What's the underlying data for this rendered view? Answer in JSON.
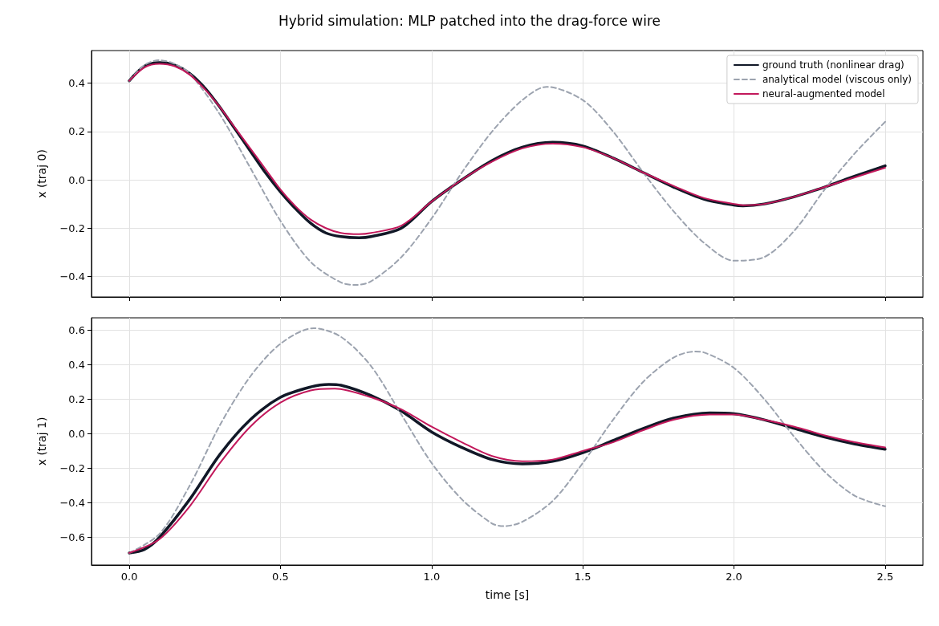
{
  "chart_data": [
    {
      "type": "line",
      "title": "Hybrid simulation: MLP patched into the drag-force wire",
      "ylabel": "x (traj 0)",
      "xlim": [
        -0.125,
        2.625
      ],
      "ylim": [
        -0.485,
        0.535
      ],
      "xticks": [
        {
          "value": 0,
          "label": null
        },
        {
          "value": 0.5,
          "label": null
        },
        {
          "value": 1,
          "label": null
        },
        {
          "value": 1.5,
          "label": null
        },
        {
          "value": 2,
          "label": null
        },
        {
          "value": 2.5,
          "label": null
        }
      ],
      "yticks": [
        {
          "value": -0.4,
          "label": "−0.4"
        },
        {
          "value": -0.2,
          "label": "−0.2"
        },
        {
          "value": 0,
          "label": "0.0"
        },
        {
          "value": 0.2,
          "label": "0.2"
        },
        {
          "value": 0.4,
          "label": "0.4"
        }
      ],
      "tick_labels": "y",
      "grid": true,
      "legend": "top right",
      "marker": "none",
      "series": [
        {
          "name": "ground truth (nonlinear drag)",
          "color": "#111827",
          "line_style": "solid",
          "x": [
            0,
            0.05,
            0.1,
            0.15,
            0.2,
            0.25,
            0.3,
            0.35,
            0.4,
            0.45,
            0.5,
            0.55,
            0.6,
            0.65,
            0.7,
            0.76,
            0.8,
            0.9,
            1.0,
            1.1,
            1.2,
            1.3,
            1.4,
            1.5,
            1.6,
            1.7,
            1.8,
            1.9,
            2.0,
            2.03,
            2.1,
            2.2,
            2.3,
            2.4,
            2.5
          ],
          "values": [
            0.41,
            0.47,
            0.485,
            0.475,
            0.44,
            0.38,
            0.3,
            0.21,
            0.12,
            0.03,
            -0.05,
            -0.12,
            -0.18,
            -0.22,
            -0.235,
            -0.24,
            -0.235,
            -0.2,
            -0.09,
            0.0,
            0.08,
            0.135,
            0.155,
            0.14,
            0.09,
            0.03,
            -0.03,
            -0.08,
            -0.105,
            -0.108,
            -0.1,
            -0.07,
            -0.03,
            0.015,
            0.058
          ]
        },
        {
          "name": "analytical model (viscous only)",
          "color": "#9ca3af",
          "line_style": "dashed",
          "x": [
            0,
            0.05,
            0.1,
            0.15,
            0.2,
            0.3,
            0.4,
            0.5,
            0.6,
            0.7,
            0.75,
            0.8,
            0.9,
            1.0,
            1.1,
            1.2,
            1.3,
            1.38,
            1.5,
            1.6,
            1.7,
            1.8,
            1.9,
            2.0,
            2.1,
            2.2,
            2.3,
            2.4,
            2.5
          ],
          "values": [
            0.41,
            0.475,
            0.495,
            0.48,
            0.44,
            0.27,
            0.05,
            -0.17,
            -0.34,
            -0.425,
            -0.435,
            -0.42,
            -0.32,
            -0.16,
            0.03,
            0.2,
            0.33,
            0.385,
            0.33,
            0.2,
            0.03,
            -0.13,
            -0.26,
            -0.335,
            -0.32,
            -0.21,
            -0.04,
            0.11,
            0.24
          ]
        },
        {
          "name": "neural-augmented model",
          "color": "#c2185b",
          "line_style": "solid",
          "x": [
            0,
            0.05,
            0.1,
            0.15,
            0.2,
            0.25,
            0.3,
            0.35,
            0.4,
            0.45,
            0.5,
            0.55,
            0.6,
            0.65,
            0.7,
            0.76,
            0.8,
            0.9,
            1.0,
            1.1,
            1.2,
            1.3,
            1.4,
            1.5,
            1.6,
            1.7,
            1.8,
            1.9,
            2.0,
            2.03,
            2.1,
            2.2,
            2.3,
            2.4,
            2.5
          ],
          "values": [
            0.41,
            0.465,
            0.48,
            0.47,
            0.435,
            0.375,
            0.3,
            0.215,
            0.13,
            0.045,
            -0.04,
            -0.11,
            -0.165,
            -0.2,
            -0.22,
            -0.225,
            -0.22,
            -0.19,
            -0.09,
            0.0,
            0.075,
            0.13,
            0.15,
            0.135,
            0.09,
            0.03,
            -0.025,
            -0.075,
            -0.1,
            -0.105,
            -0.1,
            -0.07,
            -0.03,
            0.01,
            0.05
          ]
        }
      ]
    },
    {
      "type": "line",
      "xlabel": "time [s]",
      "ylabel": "x (traj 1)",
      "xlim": [
        -0.125,
        2.625
      ],
      "ylim": [
        -0.76,
        0.67
      ],
      "xticks": [
        {
          "value": 0,
          "label": "0.0"
        },
        {
          "value": 0.5,
          "label": "0.5"
        },
        {
          "value": 1,
          "label": "1.0"
        },
        {
          "value": 1.5,
          "label": "1.5"
        },
        {
          "value": 2,
          "label": "2.0"
        },
        {
          "value": 2.5,
          "label": "2.5"
        }
      ],
      "yticks": [
        {
          "value": -0.6,
          "label": "−0.6"
        },
        {
          "value": -0.4,
          "label": "−0.4"
        },
        {
          "value": -0.2,
          "label": "−0.2"
        },
        {
          "value": 0,
          "label": "0.0"
        },
        {
          "value": 0.2,
          "label": "0.2"
        },
        {
          "value": 0.4,
          "label": "0.4"
        },
        {
          "value": 0.6,
          "label": "0.6"
        }
      ],
      "grid": true,
      "marker": "none",
      "series": [
        {
          "color": "#111827",
          "line_style": "solid",
          "x": [
            0,
            0.05,
            0.1,
            0.2,
            0.3,
            0.4,
            0.5,
            0.6,
            0.66,
            0.7,
            0.8,
            0.9,
            1.0,
            1.1,
            1.2,
            1.3,
            1.4,
            1.5,
            1.6,
            1.7,
            1.8,
            1.92,
            2.0,
            2.1,
            2.2,
            2.3,
            2.4,
            2.5
          ],
          "values": [
            -0.69,
            -0.67,
            -0.6,
            -0.38,
            -0.12,
            0.08,
            0.21,
            0.27,
            0.285,
            0.28,
            0.22,
            0.13,
            0.01,
            -0.08,
            -0.15,
            -0.175,
            -0.16,
            -0.11,
            -0.04,
            0.03,
            0.09,
            0.12,
            0.115,
            0.08,
            0.03,
            -0.02,
            -0.06,
            -0.09
          ]
        },
        {
          "color": "#9ca3af",
          "line_style": "dashed",
          "x": [
            0,
            0.1,
            0.2,
            0.3,
            0.4,
            0.5,
            0.61,
            0.7,
            0.8,
            0.9,
            1.0,
            1.1,
            1.2,
            1.24,
            1.3,
            1.4,
            1.5,
            1.6,
            1.7,
            1.8,
            1.87,
            1.9,
            2.0,
            2.1,
            2.2,
            2.3,
            2.4,
            2.5
          ],
          "values": [
            -0.69,
            -0.58,
            -0.3,
            0.05,
            0.33,
            0.52,
            0.61,
            0.56,
            0.39,
            0.11,
            -0.17,
            -0.38,
            -0.52,
            -0.535,
            -0.51,
            -0.39,
            -0.17,
            0.08,
            0.3,
            0.44,
            0.475,
            0.47,
            0.38,
            0.2,
            -0.02,
            -0.22,
            -0.36,
            -0.42
          ]
        },
        {
          "color": "#c2185b",
          "line_style": "solid",
          "x": [
            0,
            0.1,
            0.2,
            0.3,
            0.4,
            0.5,
            0.6,
            0.68,
            0.8,
            0.9,
            1.0,
            1.1,
            1.2,
            1.3,
            1.4,
            1.5,
            1.6,
            1.7,
            1.8,
            1.92,
            2.0,
            2.1,
            2.2,
            2.3,
            2.4,
            2.5
          ],
          "values": [
            -0.69,
            -0.61,
            -0.42,
            -0.17,
            0.04,
            0.18,
            0.25,
            0.26,
            0.21,
            0.14,
            0.04,
            -0.05,
            -0.13,
            -0.16,
            -0.15,
            -0.1,
            -0.05,
            0.02,
            0.08,
            0.11,
            0.11,
            0.08,
            0.04,
            -0.01,
            -0.05,
            -0.08
          ]
        }
      ]
    }
  ]
}
